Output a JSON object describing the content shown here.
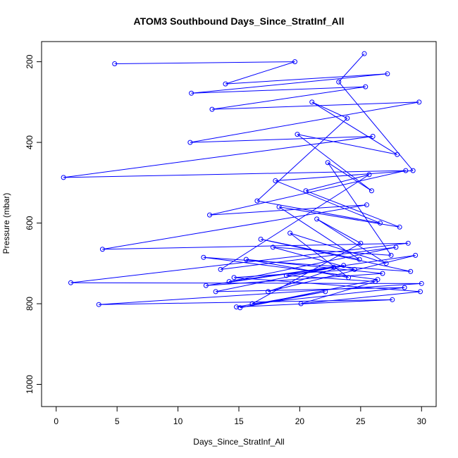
{
  "chart_data": {
    "type": "line",
    "title": "ATOM3 Southbound Days_Since_StratInf_All",
    "xlabel": "Days_Since_StratInf_All",
    "ylabel": "Pressure (mbar)",
    "xlim": [
      -1.2,
      31.2
    ],
    "ylim": [
      1055,
      150
    ],
    "y_reversed": true,
    "x_ticks": [
      0,
      5,
      10,
      15,
      20,
      25,
      30
    ],
    "y_ticks": [
      200,
      400,
      600,
      800,
      1000
    ],
    "grid": false,
    "legend": "none",
    "marker": "open-circle",
    "series_color": "#0000ff",
    "series": [
      {
        "x": [
          4.8,
          19.6,
          13.9,
          27.2,
          11.1,
          25.4,
          12.8,
          29.8,
          11.0,
          26.0,
          0.6,
          28.7,
          12.6,
          25.5,
          3.8,
          28.9,
          1.2,
          30.0,
          3.5,
          27.6,
          14.8,
          22.1,
          15.1,
          26.4,
          12.1,
          29.1,
          16.8,
          24.9,
          18.3,
          28.2,
          20.5,
          25.7,
          13.5,
          27.9,
          14.2,
          23.6,
          17.4,
          29.5,
          12.3,
          26.8,
          15.6,
          24.0,
          19.2,
          27.1,
          21.4,
          25.0,
          16.1,
          28.6,
          13.1,
          22.8,
          18.9,
          26.2,
          20.1,
          29.9,
          14.6,
          24.5,
          17.8,
          27.5,
          22.3,
          25.9,
          19.8,
          28.0,
          21.0,
          23.9,
          16.5,
          26.6,
          18.0,
          29.3,
          23.2,
          25.3
        ],
        "y": [
          205,
          200,
          255,
          230,
          278,
          262,
          318,
          300,
          400,
          385,
          487,
          470,
          580,
          555,
          665,
          650,
          748,
          750,
          802,
          790,
          808,
          770,
          810,
          740,
          685,
          720,
          640,
          690,
          560,
          610,
          520,
          480,
          715,
          660,
          745,
          705,
          770,
          680,
          755,
          725,
          690,
          735,
          625,
          700,
          590,
          650,
          800,
          760,
          770,
          710,
          730,
          745,
          800,
          770,
          735,
          715,
          660,
          680,
          450,
          520,
          380,
          430,
          300,
          340,
          545,
          600,
          495,
          470,
          250,
          180
        ]
      }
    ]
  }
}
